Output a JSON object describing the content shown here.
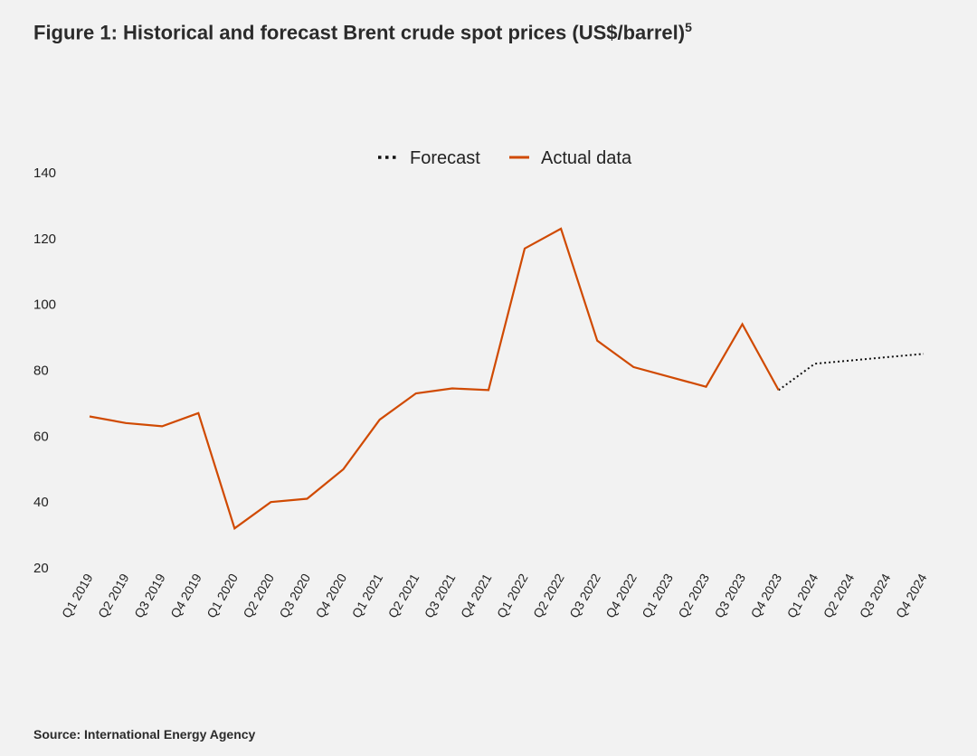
{
  "figure": {
    "title": "Figure 1: Historical and forecast Brent crude spot prices (US$/barrel)",
    "title_sup": "5",
    "source": "Source: International Energy Agency"
  },
  "chart_data": {
    "type": "line",
    "title": "Figure 1: Historical and forecast Brent crude spot prices (US$/barrel)",
    "xlabel": "",
    "ylabel": "",
    "ylim": [
      20,
      140
    ],
    "yticks": [
      20,
      40,
      60,
      80,
      100,
      120,
      140
    ],
    "grid": false,
    "legend_position": "top-center",
    "categories": [
      "Q1 2019",
      "Q2 2019",
      "Q3 2019",
      "Q4 2019",
      "Q1 2020",
      "Q2 2020",
      "Q3 2020",
      "Q4 2020",
      "Q1 2021",
      "Q2 2021",
      "Q3 2021",
      "Q4 2021",
      "Q1 2022",
      "Q2 2022",
      "Q3 2022",
      "Q4 2022",
      "Q1 2023",
      "Q2 2023",
      "Q3 2023",
      "Q4 2023",
      "Q1 2024",
      "Q2 2024",
      "Q3 2024",
      "Q4 2024"
    ],
    "series": [
      {
        "name": "Forecast",
        "style": "dotted",
        "color": "#111111",
        "values": [
          null,
          null,
          null,
          null,
          null,
          null,
          null,
          null,
          null,
          null,
          null,
          null,
          null,
          null,
          null,
          null,
          null,
          null,
          null,
          74,
          82,
          83,
          84,
          85
        ]
      },
      {
        "name": "Actual data",
        "style": "solid",
        "color": "#d04a02",
        "values": [
          66,
          64,
          63,
          67,
          32,
          40,
          41,
          50,
          65,
          73,
          74.5,
          74,
          117,
          123,
          89,
          81,
          78,
          75,
          94,
          74,
          null,
          null,
          null,
          null
        ]
      }
    ]
  }
}
